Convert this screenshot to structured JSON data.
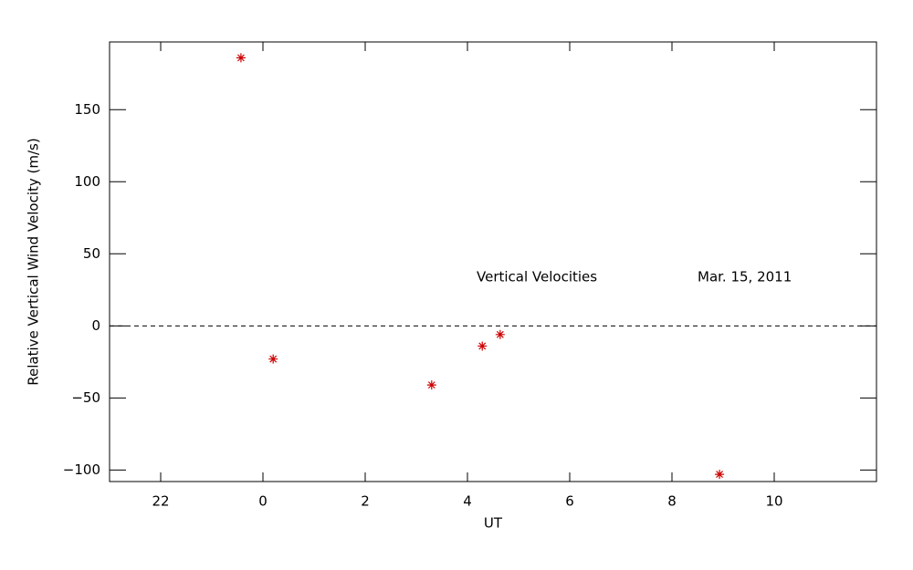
{
  "chart_data": {
    "type": "scatter",
    "xlabel": "UT",
    "ylabel": "Relative Vertical Wind Velocity (m/s)",
    "annotations": [
      "Vertical Velocities",
      "Mar. 15, 2011"
    ],
    "x": [
      -0.43,
      0.2,
      3.3,
      4.29,
      4.64,
      8.93
    ],
    "values": [
      186,
      -23,
      -41,
      -14,
      -6,
      -103
    ],
    "color": "#cc0000",
    "xlim": [
      -3,
      12
    ],
    "xticks": [
      {
        "value": -2,
        "label": "22"
      },
      0,
      2,
      4,
      6,
      8,
      10
    ],
    "ylim": [
      -108,
      197
    ],
    "yticks": [
      {
        "value": -100,
        "label": "−100"
      },
      {
        "value": -50,
        "label": "−50"
      },
      0,
      50,
      100,
      150
    ],
    "reference_line": 0
  }
}
